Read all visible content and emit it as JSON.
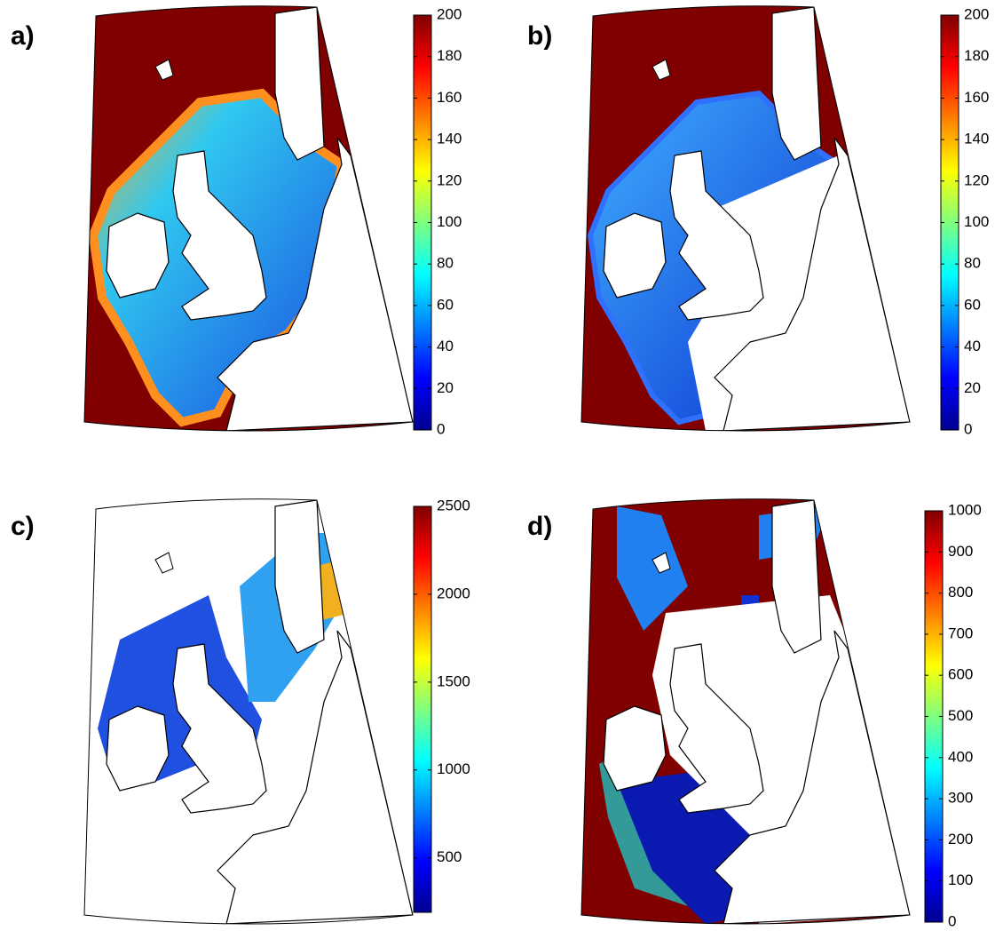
{
  "panels": [
    {
      "label": "a)",
      "colorbar": {
        "lim": [
          0,
          200
        ],
        "ticks": [
          0,
          20,
          40,
          60,
          80,
          100,
          120,
          140,
          160,
          180,
          200
        ]
      }
    },
    {
      "label": "b)",
      "colorbar": {
        "lim": [
          0,
          200
        ],
        "ticks": [
          0,
          20,
          40,
          60,
          80,
          100,
          120,
          140,
          160,
          180,
          200
        ]
      }
    },
    {
      "label": "c)",
      "colorbar": {
        "lim": [
          190,
          2500
        ],
        "ticks": [
          500,
          1000,
          1500,
          2000,
          2500
        ]
      }
    },
    {
      "label": "d)",
      "colorbar": {
        "lim": [
          0,
          1000
        ],
        "ticks": [
          0,
          100,
          200,
          300,
          400,
          500,
          600,
          700,
          800,
          900,
          1000
        ]
      }
    }
  ]
}
